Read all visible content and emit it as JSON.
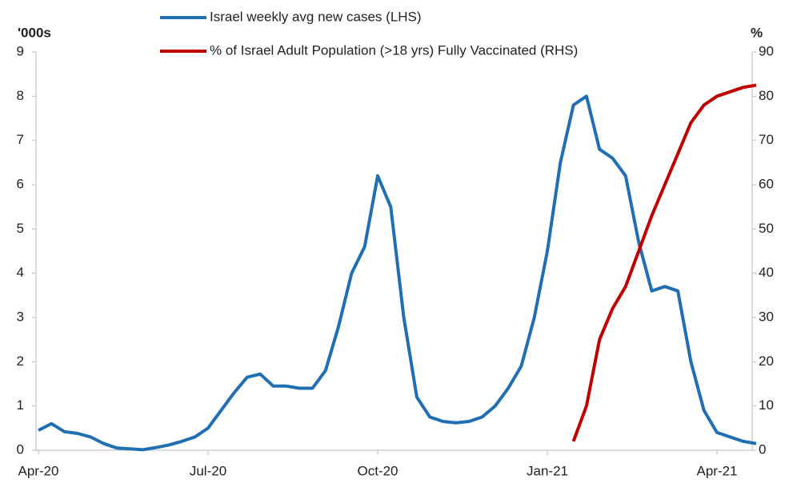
{
  "chart_data": {
    "type": "line",
    "y_label": "'000s",
    "y2_label": "%",
    "categories": [
      "Apr-20",
      null,
      null,
      null,
      null,
      null,
      null,
      null,
      null,
      null,
      null,
      null,
      null,
      "Jul-20",
      null,
      null,
      null,
      null,
      null,
      null,
      null,
      null,
      null,
      null,
      null,
      null,
      "Oct-20",
      null,
      null,
      null,
      null,
      null,
      null,
      null,
      null,
      null,
      null,
      null,
      null,
      "Jan-21",
      null,
      null,
      null,
      null,
      null,
      null,
      null,
      null,
      null,
      null,
      null,
      null,
      "Apr-21",
      null,
      null,
      null
    ],
    "series": [
      {
        "name": "Israel weekly avg new cases (LHS)",
        "color": "#1f6fb2",
        "axis": "y",
        "values": [
          0.45,
          0.6,
          0.42,
          0.38,
          0.3,
          0.15,
          0.05,
          0.03,
          0.01,
          0.06,
          0.12,
          0.2,
          0.3,
          0.5,
          0.9,
          1.3,
          1.65,
          1.72,
          1.45,
          1.45,
          1.4,
          1.4,
          1.8,
          2.8,
          4.0,
          4.6,
          6.2,
          5.5,
          3.0,
          1.2,
          0.75,
          0.65,
          0.62,
          0.65,
          0.75,
          1.0,
          1.4,
          1.9,
          3.0,
          4.5,
          6.5,
          7.8,
          8.0,
          6.8,
          6.6,
          6.2,
          4.7,
          3.6,
          3.7,
          3.6,
          2.0,
          0.9,
          0.4,
          0.3,
          0.2,
          0.15
        ]
      },
      {
        "name": "% of Israel Adult Population (>18 yrs) Fully Vaccinated (RHS)",
        "color": "#c00000",
        "axis": "y2",
        "values": [
          null,
          null,
          null,
          null,
          null,
          null,
          null,
          null,
          null,
          null,
          null,
          null,
          null,
          null,
          null,
          null,
          null,
          null,
          null,
          null,
          null,
          null,
          null,
          null,
          null,
          null,
          null,
          null,
          null,
          null,
          null,
          null,
          null,
          null,
          null,
          null,
          null,
          null,
          null,
          null,
          null,
          2,
          10,
          25,
          32,
          37,
          45,
          53,
          60,
          67,
          74,
          78,
          80,
          81,
          82,
          82.5
        ]
      }
    ],
    "ylim": [
      0,
      9
    ],
    "yticks": [
      0,
      1,
      2,
      3,
      4,
      5,
      6,
      7,
      8,
      9
    ],
    "y2lim": [
      0,
      90
    ],
    "y2ticks": [
      0,
      10,
      20,
      30,
      40,
      50,
      60,
      70,
      80,
      90
    ],
    "grid": false
  }
}
